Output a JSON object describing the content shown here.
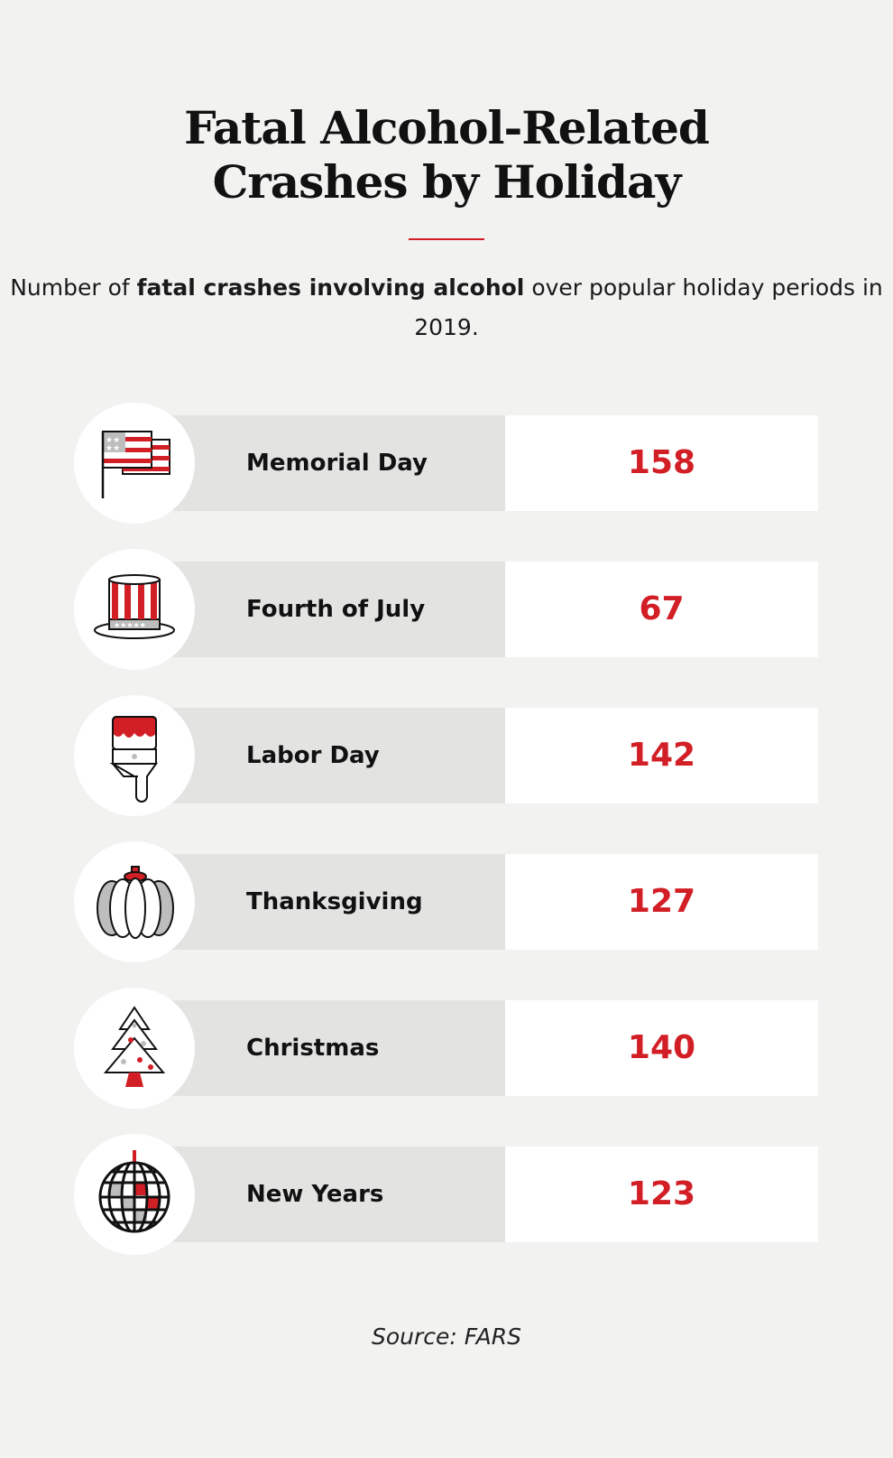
{
  "title": {
    "line1": "Fatal Alcohol-Related",
    "line2": "Crashes by Holiday"
  },
  "subtitle": {
    "pre": "Number of ",
    "bold": "fatal crashes involving alcohol",
    "post": " over popular holiday periods in 2019."
  },
  "source": "Source: FARS",
  "colors": {
    "accent": "#d21f26",
    "label_bg": "#e3e3e2",
    "value_bg": "#ffffff",
    "page_bg": "#f2f2f1"
  },
  "chart_data": {
    "type": "table",
    "title": "Fatal Alcohol-Related Crashes by Holiday",
    "subtitle": "Number of fatal crashes involving alcohol over popular holiday periods in 2019.",
    "categories": [
      "Memorial Day",
      "Fourth of July",
      "Labor Day",
      "Thanksgiving",
      "Christmas",
      "New Years"
    ],
    "values": [
      158,
      67,
      142,
      127,
      140,
      123
    ],
    "icons": [
      "flag-icon",
      "top-hat-icon",
      "paintbrush-icon",
      "pumpkin-icon",
      "christmas-tree-icon",
      "disco-ball-icon"
    ]
  }
}
